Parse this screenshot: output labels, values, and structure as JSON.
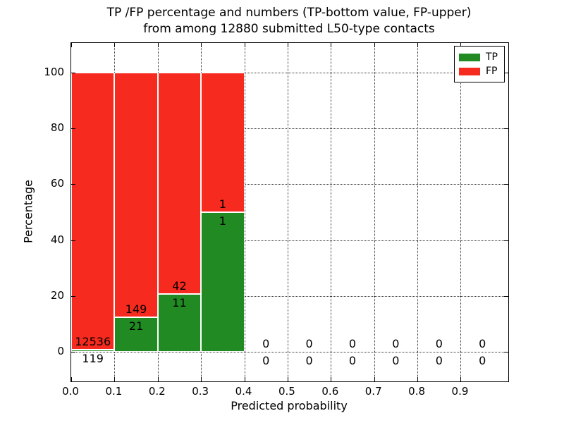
{
  "title": {
    "line1": "TP /FP percentage and numbers (TP-bottom value, FP-upper)",
    "line2": "from among 12880 submitted L50-type contacts"
  },
  "chart_data": {
    "type": "bar",
    "stacked": true,
    "title": "TP /FP percentage and numbers (TP-bottom value, FP-upper)\nfrom among 12880 submitted L50-type contacts",
    "xlabel": "Predicted probability",
    "ylabel": "Percentage",
    "xlim": [
      0,
      1.01
    ],
    "ylim": [
      -10.5,
      110.5
    ],
    "x_tick_values": [
      0.0,
      0.1,
      0.2,
      0.3,
      0.4,
      0.5,
      0.6,
      0.7,
      0.8,
      0.9
    ],
    "x_tick_labels": [
      "0.0",
      "0.1",
      "0.2",
      "0.3",
      "0.4",
      "0.5",
      "0.6",
      "0.7",
      "0.8",
      "0.9"
    ],
    "y_tick_values": [
      0,
      20,
      40,
      60,
      80,
      100
    ],
    "y_tick_labels": [
      "0",
      "20",
      "40",
      "60",
      "80",
      "100"
    ],
    "grid": "dotted",
    "legend_position": "upper-right",
    "bins": {
      "start": 0.0,
      "width": 0.1,
      "count": 10
    },
    "series": [
      {
        "name": "TP",
        "color": "#218a22",
        "counts": [
          119,
          21,
          11,
          1,
          0,
          0,
          0,
          0,
          0,
          0
        ]
      },
      {
        "name": "FP",
        "color": "#f62a1e",
        "counts": [
          12536,
          149,
          42,
          1,
          0,
          0,
          0,
          0,
          0,
          0
        ]
      }
    ],
    "bar_heights_percent_tp": [
      0.94,
      12.35,
      20.75,
      50.0,
      0,
      0,
      0,
      0,
      0,
      0
    ],
    "bar_tops_percent": [
      100,
      100,
      100,
      100,
      0,
      0,
      0,
      0,
      0,
      0
    ]
  },
  "colors": {
    "tp": "#218a22",
    "fp": "#f62a1e",
    "grid": "#333333",
    "axis": "#000000",
    "background": "#ffffff",
    "text": "#000000",
    "bar_edge": "#ffffff"
  }
}
